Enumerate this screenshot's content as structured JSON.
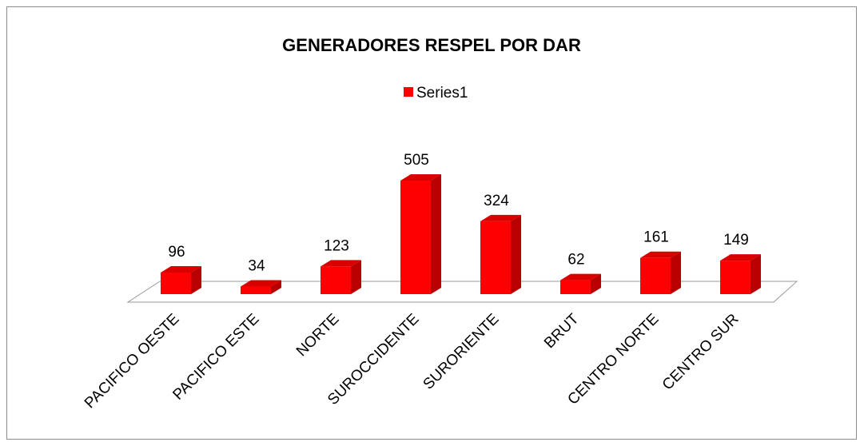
{
  "chart_data": {
    "type": "bar3d",
    "title": "GENERADORES RESPEL POR DAR",
    "categories": [
      "PACIFICO OESTE",
      "PACIFICO ESTE",
      "NORTE",
      "SUROCCIDENTE",
      "SURORIENTE",
      "BRUT",
      "CENTRO NORTE",
      "CENTRO SUR"
    ],
    "series": [
      {
        "name": "Series1",
        "color": "#ff0000",
        "values": [
          96,
          34,
          123,
          505,
          324,
          62,
          161,
          149
        ]
      }
    ],
    "legend": "top"
  }
}
